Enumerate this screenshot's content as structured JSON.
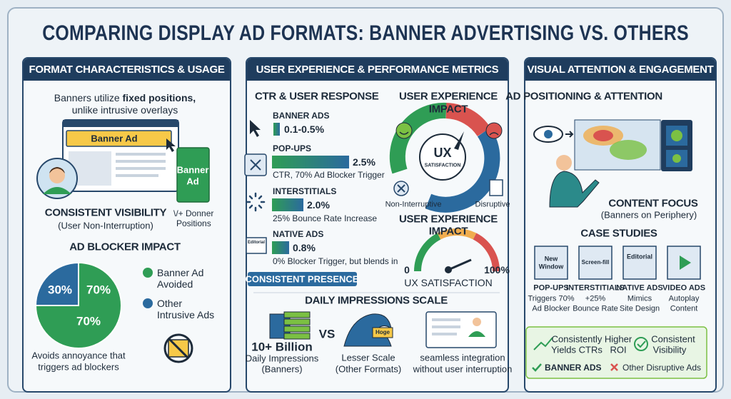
{
  "title": "COMPARING DISPLAY AD FORMATS: BANNER ADVERTISING VS. OTHERS",
  "left": {
    "header": "FORMAT CHARACTERISTICS & USAGE",
    "intro": {
      "plain": "Banners utilize ",
      "bold": "fixed positions,",
      "line2": "unlike intrusive overlays"
    },
    "banner_label": "Banner Ad",
    "side_label": [
      "Banner",
      "Ad"
    ],
    "visibility_title": "CONSISTENT VISIBILITY",
    "visibility_sub": "(User Non-Interruption)",
    "positions": [
      "\\/+ Donner",
      "Positions"
    ],
    "blocker_title": "AD BLOCKER IMPACT",
    "pie_labels": [
      "30%",
      "70%",
      "70%"
    ],
    "legend": [
      [
        "Banner Ad",
        "Avoided"
      ],
      [
        "Other",
        "Intrusive Ads"
      ]
    ],
    "footer": [
      "Avoids annoyance that",
      "triggers ad blockers"
    ]
  },
  "middle": {
    "header": "USER EXPERIENCE & PERFORMANCE METRICS",
    "ctr_title": "CTR & USER RESPONSE",
    "metrics": [
      {
        "name": "BANNER ADS",
        "value": "0.1-0.5%"
      },
      {
        "name": "POP-UPS",
        "value": "2.5%",
        "note": "CTR, 70% Ad Blocker Trigger"
      },
      {
        "name": "INTERSTITIALS",
        "value": "2.0%",
        "note": "25% Bounce Rate Increase"
      },
      {
        "name": "NATIVE ADS",
        "value": "0.8%",
        "note": "0% Blocker Trigger, but blends in"
      }
    ],
    "editorial_icon": "Editorial",
    "presence": "CONSISTENT PRESENCE",
    "impact1": {
      "title": [
        "USER EXPERIENCE",
        "IMPACT"
      ],
      "center": [
        "UX",
        "SATISFACTION"
      ],
      "left": "Non-Interruptive",
      "right": "Disruptive"
    },
    "impact2": {
      "title": [
        "USER EXPERIENCE",
        "IMPACT"
      ],
      "min": "0",
      "max": "100%",
      "caption": "UX SATISFACTION"
    },
    "daily": {
      "title": "DAILY IMPRESSIONS SCALE",
      "big": "10+ Billion",
      "big_sub": [
        "Daily Impressions",
        "(Banners)"
      ],
      "vs": "VS",
      "wave_tag": "Hoge",
      "other": [
        "Lesser Scale",
        "(Other Formats)"
      ],
      "seamless": [
        "seamless integration",
        "without user interruption"
      ]
    }
  },
  "right": {
    "header": "VISUAL ATTENTION & ENGAGEMENT",
    "position_title": "AD POSITIONING & ATTENTION",
    "focus_title": "CONTENT FOCUS",
    "focus_sub": "(Banners on Periphery)",
    "case_title": "CASE STUDIES",
    "cases": [
      {
        "icon": [
          "New",
          "Window"
        ],
        "title": "POP-UPS",
        "desc": [
          "Triggers 70%",
          "Ad Blocker"
        ]
      },
      {
        "icon": [
          "Screen-fill"
        ],
        "title": "INTERSTITIALS",
        "desc": [
          "+25%",
          "Bounce Rate"
        ]
      },
      {
        "icon": [
          "Editorial"
        ],
        "title": "NATIVE ADS",
        "desc": [
          "Mimics",
          "Site Design"
        ]
      },
      {
        "title": "VIDEO ADS",
        "desc": [
          "Autoplay",
          "Content"
        ]
      }
    ],
    "summary": {
      "ctr": [
        "Consistently",
        "Yields CTRs"
      ],
      "roi": [
        "Higher",
        "ROI"
      ],
      "visibility": [
        "Consistent",
        "Visibility"
      ],
      "banner": "BANNER ADS",
      "other": "Other Disruptive Ads"
    }
  }
}
